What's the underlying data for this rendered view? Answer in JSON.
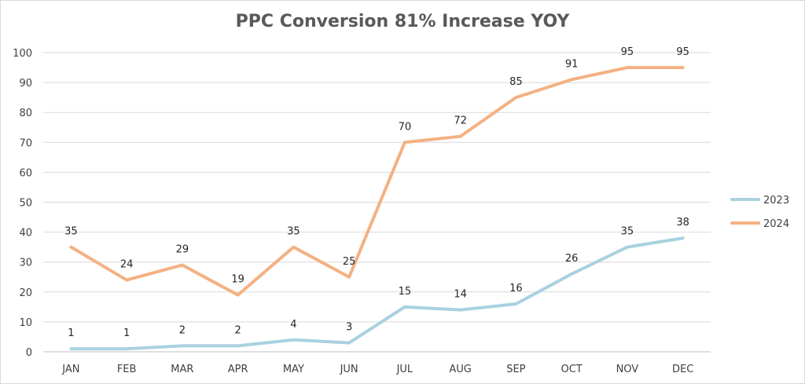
{
  "chart_data": {
    "type": "line",
    "title": "PPC Conversion 81% Increase YOY",
    "categories": [
      "JAN",
      "FEB",
      "MAR",
      "APR",
      "MAY",
      "JUN",
      "JUL",
      "AUG",
      "SEP",
      "OCT",
      "NOV",
      "DEC"
    ],
    "series": [
      {
        "name": "2023",
        "color": "#a9d1df",
        "values": [
          1,
          1,
          2,
          2,
          4,
          3,
          15,
          14,
          16,
          26,
          35,
          38
        ]
      },
      {
        "name": "2024",
        "color": "#f4b183",
        "values": [
          35,
          24,
          29,
          19,
          35,
          25,
          70,
          72,
          85,
          91,
          95,
          95
        ]
      }
    ],
    "ylim": [
      0,
      100
    ],
    "yticks": [
      0,
      10,
      20,
      30,
      40,
      50,
      60,
      70,
      80,
      90,
      100
    ],
    "grid": true,
    "legend_position": "right",
    "data_labels": true
  }
}
